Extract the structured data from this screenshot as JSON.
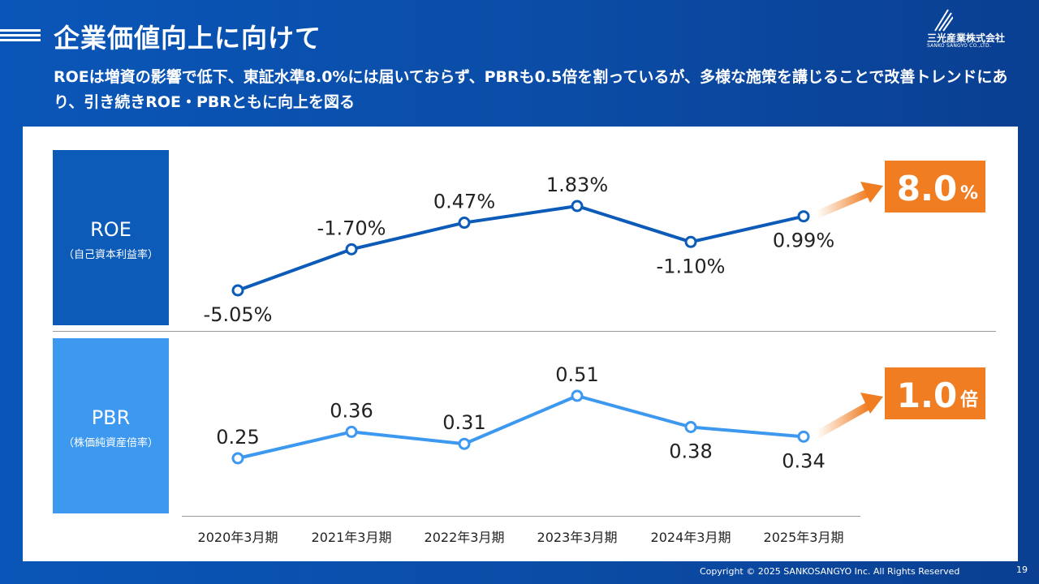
{
  "header": {
    "title": "企業価値向上に向けて",
    "subtitle": "ROEは増資の影響で低下、東証水準8.0%には届いておらず、PBRも0.5倍を割っているが、多様な施策を講じることで改善トレンドにあり、引き続きROE・PBRともに向上を図る"
  },
  "logo": {
    "name": "三光産業株式会社",
    "sub": "SANKO SANGYO CO.,LTD."
  },
  "roe_box": {
    "label": "ROE",
    "sub": "（自己資本利益率）"
  },
  "pbr_box": {
    "label": "PBR",
    "sub": "（株価純資産倍率）"
  },
  "chart_data": [
    {
      "type": "line",
      "categories": [
        "2020年3月期",
        "2021年3月期",
        "2022年3月期",
        "2023年3月期",
        "2024年3月期",
        "2025年3月期"
      ],
      "series": [
        {
          "values": [
            -5.05,
            -1.7,
            0.47,
            1.83,
            -1.1,
            0.99
          ],
          "labels": [
            "-5.05%",
            "-1.70%",
            "0.47%",
            "1.83%",
            "-1.10%",
            "0.99%"
          ],
          "label_positions": [
            "below",
            "above",
            "above",
            "above",
            "below",
            "below"
          ]
        }
      ],
      "ylim": [
        -5.05,
        1.83
      ],
      "target": {
        "value": "8.0",
        "unit": "%"
      },
      "colors": {
        "line": "#0c5bb8",
        "target": "#f07d22"
      }
    },
    {
      "type": "line",
      "categories": [
        "2020年3月期",
        "2021年3月期",
        "2022年3月期",
        "2023年3月期",
        "2024年3月期",
        "2025年3月期"
      ],
      "series": [
        {
          "values": [
            0.25,
            0.36,
            0.31,
            0.51,
            0.38,
            0.34
          ],
          "labels": [
            "0.25",
            "0.36",
            "0.31",
            "0.51",
            "0.38",
            "0.34"
          ],
          "label_positions": [
            "above",
            "above",
            "above",
            "above",
            "below",
            "below"
          ]
        }
      ],
      "ylim": [
        0.25,
        0.51
      ],
      "target": {
        "value": "1.0",
        "unit": "倍"
      },
      "colors": {
        "line": "#3d98f0",
        "target": "#f07d22"
      }
    }
  ],
  "footer": {
    "copyright": "Copyright © 2025  SANKOSANGYO Inc. All Rights Reserved",
    "page": "19"
  }
}
